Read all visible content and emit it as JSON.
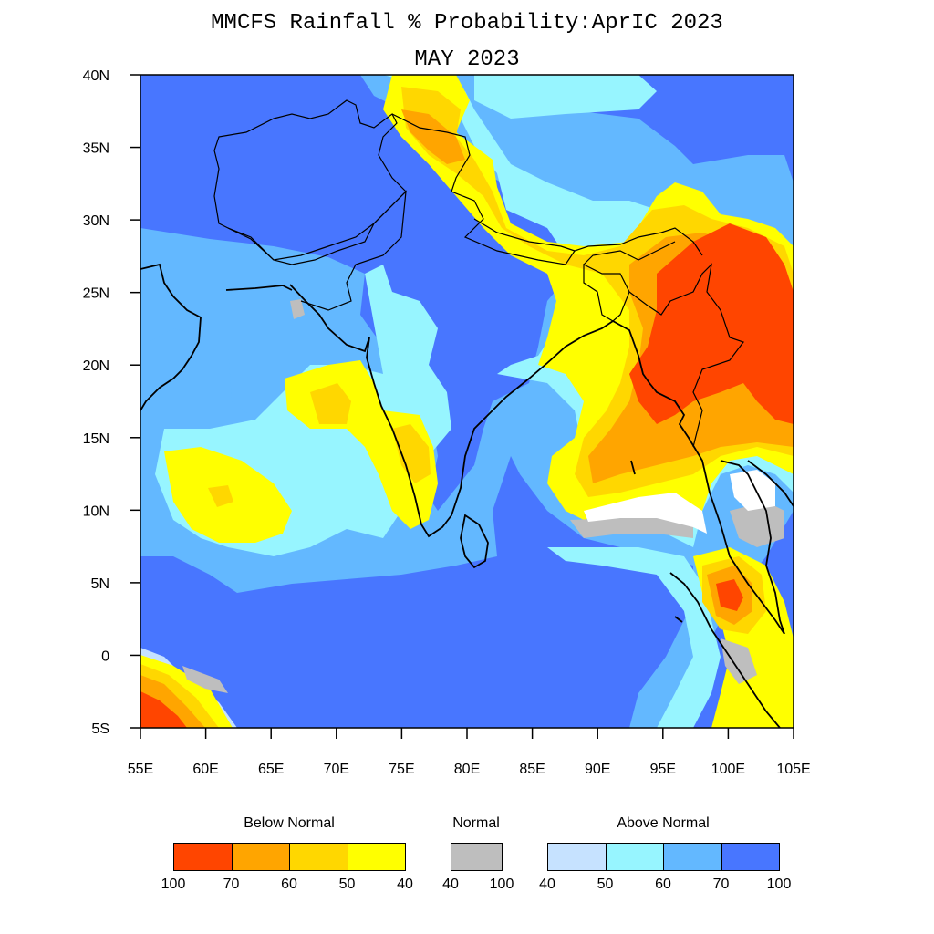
{
  "title_line1": "MMCFS Rainfall % Probability:AprIC 2023",
  "title_line2": "MAY 2023",
  "map": {
    "lon_range": [
      55,
      105
    ],
    "lat_range": [
      -5,
      40
    ],
    "x_ticks": [
      {
        "value": 55,
        "label": "55E"
      },
      {
        "value": 60,
        "label": "60E"
      },
      {
        "value": 65,
        "label": "65E"
      },
      {
        "value": 70,
        "label": "70E"
      },
      {
        "value": 75,
        "label": "75E"
      },
      {
        "value": 80,
        "label": "80E"
      },
      {
        "value": 85,
        "label": "85E"
      },
      {
        "value": 90,
        "label": "90E"
      },
      {
        "value": 95,
        "label": "95E"
      },
      {
        "value": 100,
        "label": "100E"
      },
      {
        "value": 105,
        "label": "105E"
      }
    ],
    "y_ticks": [
      {
        "value": 40,
        "label": "40N"
      },
      {
        "value": 35,
        "label": "35N"
      },
      {
        "value": 30,
        "label": "30N"
      },
      {
        "value": 25,
        "label": "25N"
      },
      {
        "value": 20,
        "label": "20N"
      },
      {
        "value": 15,
        "label": "15N"
      },
      {
        "value": 10,
        "label": "10N"
      },
      {
        "value": 5,
        "label": "5N"
      },
      {
        "value": 0,
        "label": "0"
      },
      {
        "value": -5,
        "label": "5S"
      }
    ],
    "colors": {
      "below_70_100": "#ff4500",
      "below_60_70": "#ffa500",
      "below_50_60": "#ffd700",
      "below_40_50": "#ffff00",
      "normal": "#bebebe",
      "above_40_50": "#c6e2ff",
      "above_50_60": "#97f5ff",
      "above_60_70": "#63b8ff",
      "above_70_100": "#4876ff"
    }
  },
  "legend": {
    "below": {
      "title": "Below Normal",
      "colors": [
        "#ff4500",
        "#ffa500",
        "#ffd700",
        "#ffff00"
      ],
      "labels": [
        "100",
        "70",
        "60",
        "50",
        "40"
      ]
    },
    "normal": {
      "title": "Normal",
      "colors": [
        "#bebebe"
      ],
      "labels": [
        "40",
        "100"
      ]
    },
    "above": {
      "title": "Above Normal",
      "colors": [
        "#c6e2ff",
        "#97f5ff",
        "#63b8ff",
        "#4876ff"
      ],
      "labels": [
        "40",
        "50",
        "60",
        "70",
        "100"
      ]
    }
  }
}
